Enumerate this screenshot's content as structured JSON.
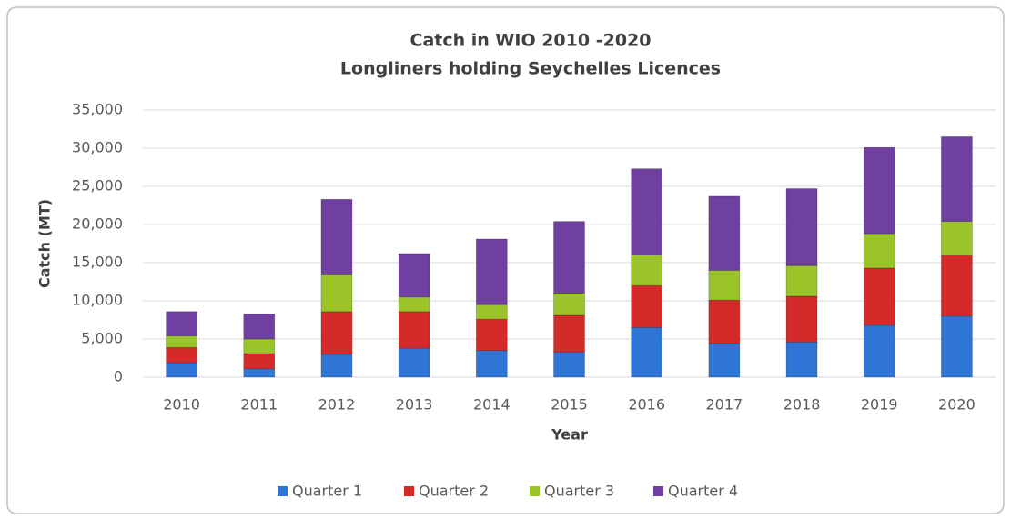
{
  "chart_data": {
    "type": "stacked_bar",
    "title": "Catch in WIO 2010 -2020",
    "subtitle": "Longliners holding Seychelles Licences",
    "x_label": "Year",
    "y_label": "Catch (MT)",
    "categories": [
      "2010",
      "2011",
      "2012",
      "2013",
      "2014",
      "2015",
      "2016",
      "2017",
      "2018",
      "2019",
      "2020"
    ],
    "series": [
      {
        "name": "Quarter 1",
        "color": "#2e75d6",
        "values": [
          1900,
          1100,
          3000,
          3800,
          3500,
          3300,
          6500,
          4400,
          4600,
          6800,
          8000
        ]
      },
      {
        "name": "Quarter 2",
        "color": "#d42a2a",
        "values": [
          2000,
          2000,
          5600,
          4800,
          4100,
          4800,
          5500,
          5700,
          6000,
          7500,
          8000
        ]
      },
      {
        "name": "Quarter 3",
        "color": "#9bc42b",
        "values": [
          1500,
          1900,
          4800,
          1900,
          1900,
          2900,
          4000,
          3900,
          4000,
          4500,
          4400
        ]
      },
      {
        "name": "Quarter 4",
        "color": "#7040a0",
        "values": [
          3200,
          3300,
          9900,
          5700,
          8600,
          9400,
          11300,
          9700,
          10100,
          11300,
          11100
        ]
      }
    ],
    "ylim": [
      0,
      35000
    ],
    "yticks": [
      0,
      {
        "value": 5000,
        "label": "5,000"
      },
      {
        "value": 10000,
        "label": "10,000"
      },
      {
        "value": 15000,
        "label": "15,000"
      },
      {
        "value": 20000,
        "label": "20,000"
      },
      {
        "value": 25000,
        "label": "25,000"
      },
      {
        "value": 30000,
        "label": "30,000"
      },
      {
        "value": 35000,
        "label": "35,000"
      }
    ],
    "grid": true,
    "legend": "bottom"
  }
}
